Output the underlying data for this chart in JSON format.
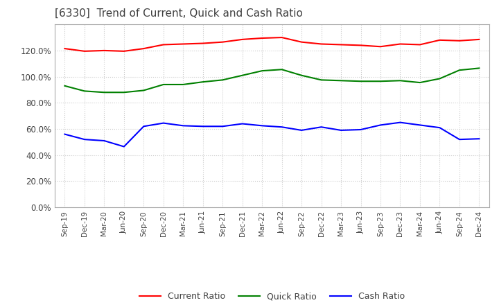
{
  "title": "[6330]  Trend of Current, Quick and Cash Ratio",
  "title_color": "#404040",
  "background_color": "#ffffff",
  "plot_background_color": "#ffffff",
  "grid_color": "#cccccc",
  "ylim": [
    0.0,
    1.4
  ],
  "yticks": [
    0.0,
    0.2,
    0.4,
    0.6,
    0.8,
    1.0,
    1.2
  ],
  "x_labels": [
    "Sep-19",
    "Dec-19",
    "Mar-20",
    "Jun-20",
    "Sep-20",
    "Dec-20",
    "Mar-21",
    "Jun-21",
    "Sep-21",
    "Dec-21",
    "Mar-22",
    "Jun-22",
    "Sep-22",
    "Dec-22",
    "Mar-23",
    "Jun-23",
    "Sep-23",
    "Dec-23",
    "Mar-24",
    "Jun-24",
    "Sep-24",
    "Dec-24"
  ],
  "current_ratio": [
    1.215,
    1.195,
    1.2,
    1.195,
    1.215,
    1.245,
    1.25,
    1.255,
    1.265,
    1.285,
    1.295,
    1.3,
    1.265,
    1.25,
    1.245,
    1.24,
    1.23,
    1.25,
    1.245,
    1.28,
    1.275,
    1.285
  ],
  "quick_ratio": [
    0.93,
    0.89,
    0.88,
    0.88,
    0.895,
    0.94,
    0.94,
    0.96,
    0.975,
    1.01,
    1.045,
    1.055,
    1.01,
    0.975,
    0.97,
    0.965,
    0.965,
    0.97,
    0.955,
    0.985,
    1.05,
    1.065
  ],
  "cash_ratio": [
    0.56,
    0.52,
    0.51,
    0.465,
    0.62,
    0.645,
    0.625,
    0.62,
    0.62,
    0.64,
    0.625,
    0.615,
    0.59,
    0.615,
    0.59,
    0.595,
    0.63,
    0.65,
    0.63,
    0.61,
    0.52,
    0.525
  ],
  "current_color": "#ff0000",
  "quick_color": "#008000",
  "cash_color": "#0000ff",
  "line_width": 1.5,
  "legend_labels": [
    "Current Ratio",
    "Quick Ratio",
    "Cash Ratio"
  ]
}
